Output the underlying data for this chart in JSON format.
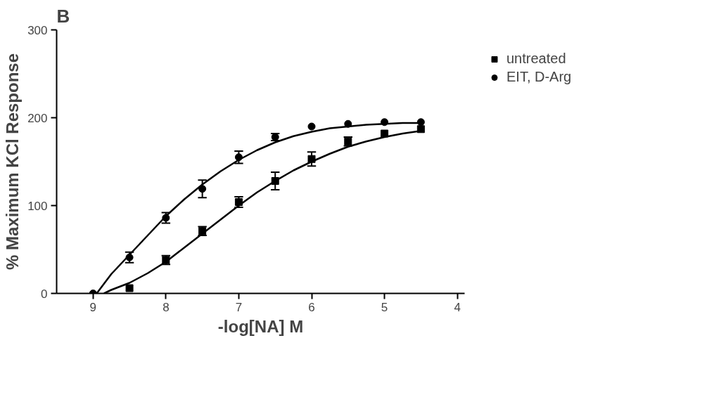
{
  "chart_data": {
    "type": "scatter",
    "title": "B",
    "xlabel": "-log[NA] M",
    "ylabel": "% Maximum KCl Response",
    "x": [
      9,
      8.5,
      8,
      7.5,
      7,
      6.5,
      6,
      5.5,
      5,
      4.5
    ],
    "series": [
      {
        "name": "untreated",
        "color": "#000000",
        "marker": "square",
        "values": [
          null,
          6,
          38,
          71,
          104,
          128,
          153,
          173,
          182,
          187
        ],
        "errors": [
          null,
          null,
          5,
          5,
          6,
          10,
          8,
          5,
          null,
          null
        ]
      },
      {
        "name": "EIT, D-Arg",
        "color": "#000000",
        "marker": "circle",
        "values": [
          0,
          41,
          86,
          119,
          155,
          178,
          190,
          193,
          195,
          195
        ],
        "errors": [
          null,
          6,
          6,
          10,
          7,
          4,
          null,
          null,
          null,
          null
        ]
      },
      {
        "type": "line",
        "color": "#000000",
        "marker": "none",
        "x": [
          8.85,
          8.75,
          8.5,
          8.25,
          8,
          7.75,
          7.5,
          7.25,
          7,
          6.75,
          6.5,
          6.25,
          6,
          5.75,
          5.5,
          5.25,
          5,
          4.75,
          4.5
        ],
        "values": [
          0,
          4,
          12,
          23,
          36,
          52,
          68,
          84,
          100,
          115,
          128,
          140,
          150,
          159,
          167,
          173,
          178,
          182,
          185
        ]
      },
      {
        "type": "line",
        "color": "#000000",
        "marker": "none",
        "x": [
          8.95,
          8.75,
          8.5,
          8.25,
          8,
          7.75,
          7.5,
          7.25,
          7,
          6.75,
          6.5,
          6.25,
          6,
          5.75,
          5.5,
          5.25,
          5,
          4.75,
          4.5
        ],
        "values": [
          0,
          22,
          44,
          66,
          88,
          107,
          124,
          139,
          152,
          163,
          172,
          179,
          184,
          188,
          190,
          192,
          193,
          194,
          194
        ]
      }
    ],
    "xlim": [
      9.5,
      3.9
    ],
    "xticks": [
      9,
      8,
      7,
      6,
      5,
      4
    ],
    "ylim": [
      0,
      300
    ],
    "yticks": [
      0,
      100,
      200,
      300
    ],
    "grid": false,
    "legend": "top right",
    "line_style": "solid"
  }
}
